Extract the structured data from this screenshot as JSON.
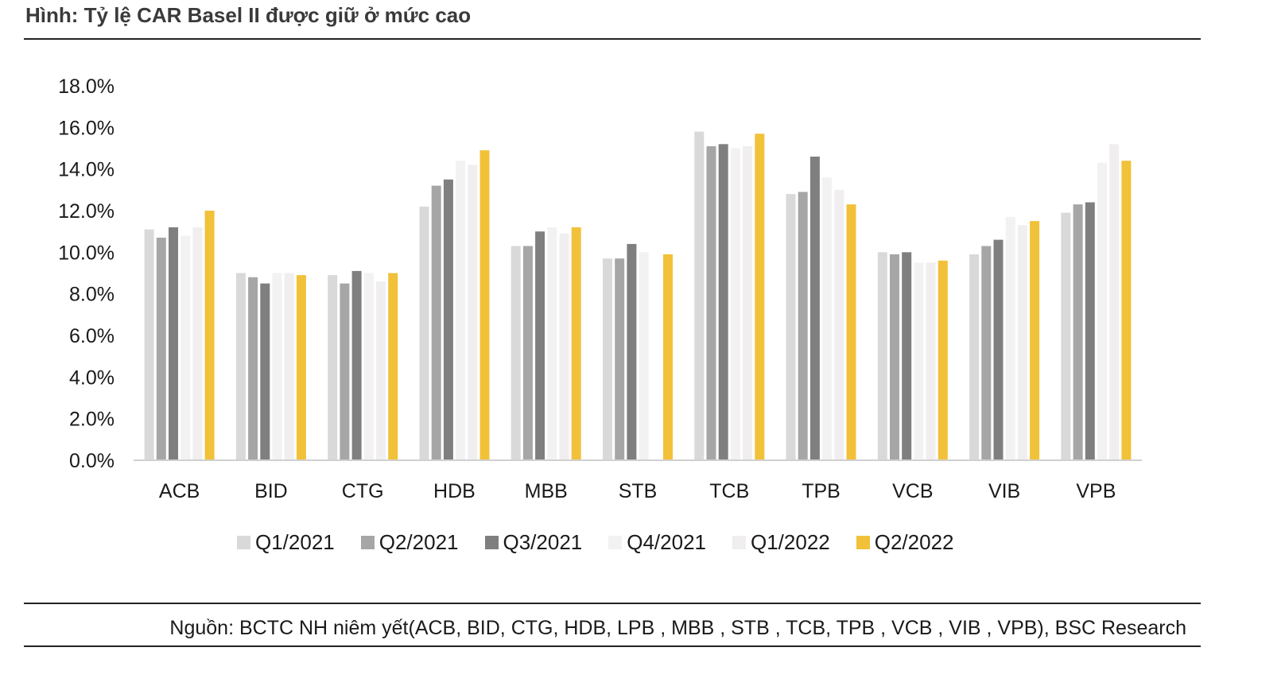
{
  "header": {
    "title": "Hình: Tỷ lệ CAR Basel II được giữ ở mức cao"
  },
  "footer": {
    "source": "Nguồn: BCTC NH niêm yết(ACB, BID, CTG, HDB, LPB , MBB , STB , TCB, TPB , VCB , VIB , VPB), BSC Research"
  },
  "chart_data": {
    "type": "bar",
    "title": "",
    "xlabel": "",
    "ylabel": "",
    "ylim": [
      0,
      18
    ],
    "yticks": [
      "0.0%",
      "2.0%",
      "4.0%",
      "6.0%",
      "8.0%",
      "10.0%",
      "12.0%",
      "14.0%",
      "16.0%",
      "18.0%"
    ],
    "categories": [
      "ACB",
      "BID",
      "CTG",
      "HDB",
      "MBB",
      "STB",
      "TCB",
      "TPB",
      "VCB",
      "VIB",
      "VPB"
    ],
    "series": [
      {
        "name": "Q1/2021",
        "color": "#d9d9d9",
        "values": [
          11.1,
          9.0,
          8.9,
          12.2,
          10.3,
          9.7,
          15.8,
          12.8,
          10.0,
          9.9,
          11.9
        ]
      },
      {
        "name": "Q2/2021",
        "color": "#a6a6a6",
        "values": [
          10.7,
          8.8,
          8.5,
          13.2,
          10.3,
          9.7,
          15.1,
          12.9,
          9.9,
          10.3,
          12.3
        ]
      },
      {
        "name": "Q3/2021",
        "color": "#7f7f7f",
        "values": [
          11.2,
          8.5,
          9.1,
          13.5,
          11.0,
          10.4,
          15.2,
          14.6,
          10.0,
          10.6,
          12.4
        ]
      },
      {
        "name": "Q4/2021",
        "color": "#f2f2f2",
        "values": [
          10.8,
          9.0,
          9.0,
          14.4,
          11.2,
          10.0,
          15.0,
          13.6,
          9.5,
          11.7,
          14.3
        ]
      },
      {
        "name": "Q1/2022",
        "color": "#f0eeee",
        "values": [
          11.2,
          9.0,
          8.6,
          14.2,
          10.9,
          null,
          15.1,
          13.0,
          9.5,
          11.3,
          15.2
        ]
      },
      {
        "name": "Q2/2022",
        "color": "#f2c13a",
        "values": [
          12.0,
          8.9,
          9.0,
          14.9,
          11.2,
          9.9,
          15.7,
          12.3,
          9.6,
          11.5,
          14.4
        ]
      }
    ],
    "grid": false,
    "legend_position": "bottom"
  }
}
